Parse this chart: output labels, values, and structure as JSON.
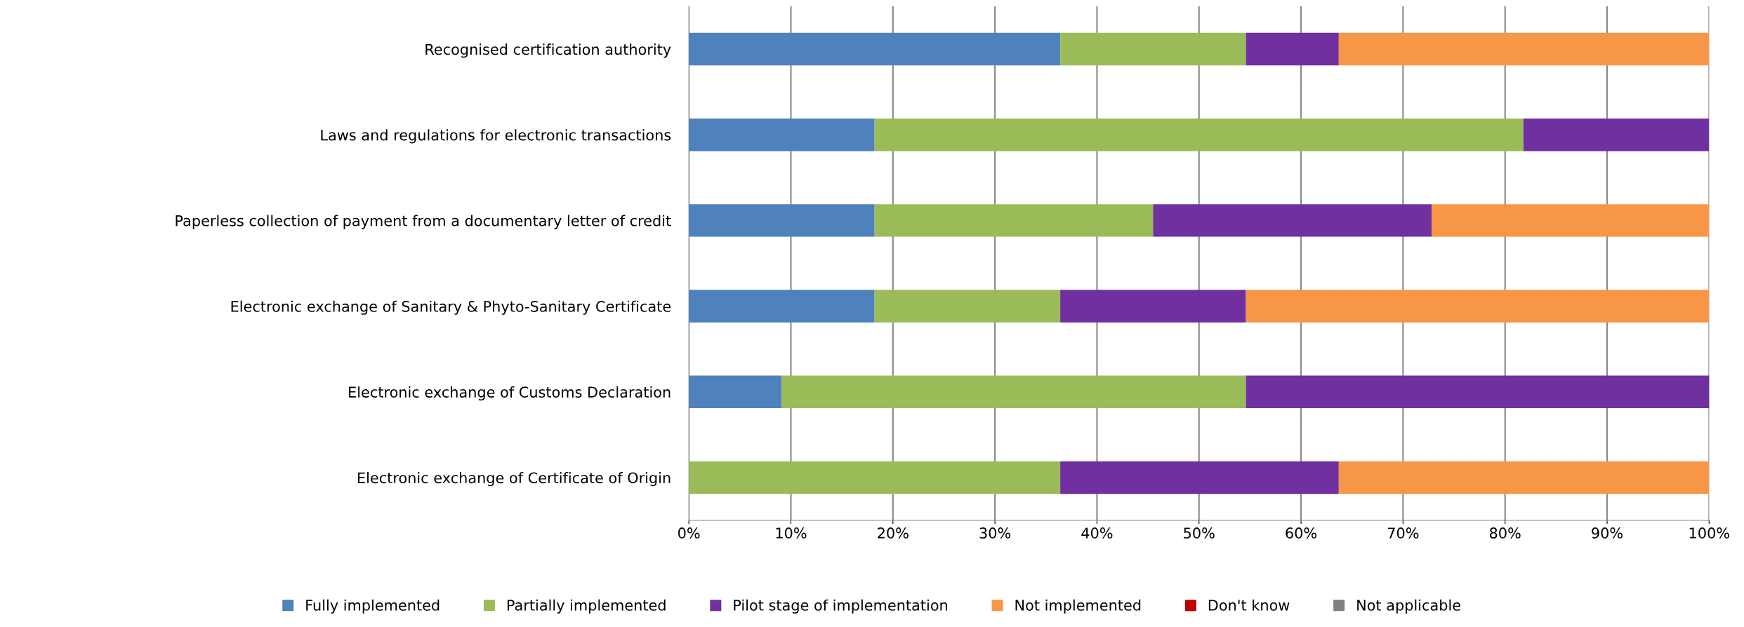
{
  "chart_data": {
    "type": "bar",
    "orientation": "horizontal",
    "stacked": true,
    "categories": [
      "Recognised certification authority",
      "Laws and regulations for electronic transactions",
      "Paperless collection of payment from a documentary letter of credit",
      "Electronic exchange of Sanitary & Phyto-Sanitary Certificate",
      "Electronic exchange of Customs Declaration",
      "Electronic exchange of Certificate of Origin"
    ],
    "series": [
      {
        "name": "Fully implemented",
        "color": "#4f81bd",
        "values": [
          36.4,
          18.2,
          18.2,
          18.2,
          9.1,
          0
        ]
      },
      {
        "name": "Partially implemented",
        "color": "#9bbb59",
        "values": [
          18.2,
          63.6,
          27.3,
          18.2,
          45.5,
          36.4
        ]
      },
      {
        "name": "Pilot stage of implementation",
        "color": "#7030a0",
        "values": [
          9.1,
          18.2,
          27.3,
          18.2,
          45.5,
          27.3
        ]
      },
      {
        "name": "Not implemented",
        "color": "#f79646",
        "values": [
          36.3,
          0,
          27.2,
          45.4,
          0,
          36.3
        ]
      },
      {
        "name": "Don't know",
        "color": "#c00000",
        "values": [
          0,
          0,
          0,
          0,
          0,
          0
        ]
      },
      {
        "name": "Not applicable",
        "color": "#808080",
        "values": [
          0,
          0,
          0,
          0,
          0,
          0
        ]
      }
    ],
    "xlim": [
      0,
      100
    ],
    "xticks": [
      {
        "value": 0,
        "label": "0%"
      },
      {
        "value": 10,
        "label": "10%"
      },
      {
        "value": 20,
        "label": "20%"
      },
      {
        "value": 30,
        "label": "30%"
      },
      {
        "value": 40,
        "label": "40%"
      },
      {
        "value": 50,
        "label": "50%"
      },
      {
        "value": 60,
        "label": "60%"
      },
      {
        "value": 70,
        "label": "70%"
      },
      {
        "value": 80,
        "label": "80%"
      },
      {
        "value": 90,
        "label": "90%"
      },
      {
        "value": 100,
        "label": "100%"
      }
    ],
    "grid": "x",
    "legend": "bottom"
  }
}
